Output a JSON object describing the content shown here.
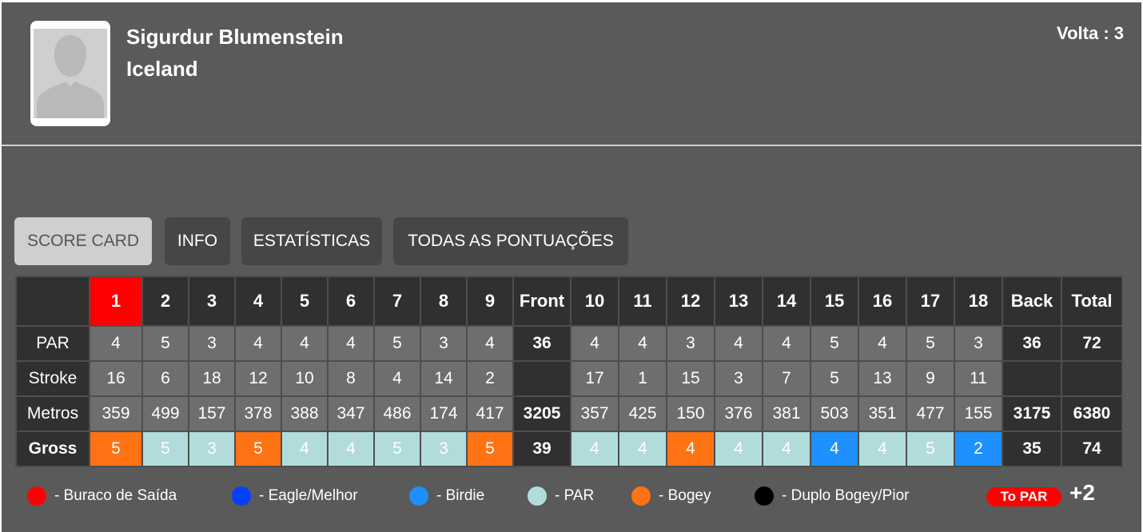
{
  "player": {
    "name": "Sigurdur Blumenstein",
    "country": "Iceland",
    "round": "Volta : 3"
  },
  "tabs": [
    {
      "label": "SCORE CARD",
      "active": true
    },
    {
      "label": "INFO",
      "active": false
    },
    {
      "label": "ESTATÍSTICAS",
      "active": false
    },
    {
      "label": "TODAS AS PONTUAÇÕES",
      "active": false
    }
  ],
  "scorecard": {
    "header": {
      "holes_front": [
        "1",
        "2",
        "3",
        "4",
        "5",
        "6",
        "7",
        "8",
        "9"
      ],
      "front": "Front",
      "holes_back": [
        "10",
        "11",
        "12",
        "13",
        "14",
        "15",
        "16",
        "17",
        "18"
      ],
      "back": "Back",
      "total": "Total"
    },
    "rows": [
      {
        "label": "PAR",
        "front": [
          "4",
          "5",
          "3",
          "4",
          "4",
          "4",
          "5",
          "3",
          "4"
        ],
        "front_total": "36",
        "back": [
          "4",
          "4",
          "3",
          "4",
          "4",
          "5",
          "4",
          "5",
          "3"
        ],
        "back_total": "36",
        "total": "72"
      },
      {
        "label": "Stroke",
        "front": [
          "16",
          "6",
          "18",
          "12",
          "10",
          "8",
          "4",
          "14",
          "2"
        ],
        "front_total": "",
        "back": [
          "17",
          "1",
          "15",
          "3",
          "7",
          "5",
          "13",
          "9",
          "11"
        ],
        "back_total": "",
        "total": ""
      },
      {
        "label": "Metros",
        "front": [
          "359",
          "499",
          "157",
          "378",
          "388",
          "347",
          "486",
          "174",
          "417"
        ],
        "front_total": "3205",
        "back": [
          "357",
          "425",
          "150",
          "376",
          "381",
          "503",
          "351",
          "477",
          "155"
        ],
        "back_total": "3175",
        "total": "6380"
      },
      {
        "label": "Gross",
        "front": [
          "5",
          "5",
          "3",
          "5",
          "4",
          "4",
          "5",
          "3",
          "5"
        ],
        "front_total": "39",
        "back": [
          "4",
          "4",
          "4",
          "4",
          "4",
          "4",
          "4",
          "5",
          "2"
        ],
        "back_total": "35",
        "total": "74",
        "front_result": [
          "bogey",
          "par",
          "par",
          "bogey",
          "par",
          "par",
          "par",
          "par",
          "bogey"
        ],
        "back_result": [
          "par",
          "par",
          "bogey",
          "par",
          "par",
          "birdie",
          "par",
          "par",
          "birdie"
        ]
      }
    ]
  },
  "legend": [
    {
      "key": "tee-hole",
      "label": "- Buraco de Saída",
      "color": "#ff0000"
    },
    {
      "key": "eagle",
      "label": "- Eagle/Melhor",
      "color": "#0040ff"
    },
    {
      "key": "birdie",
      "label": "- Birdie",
      "color": "#1e90ff"
    },
    {
      "key": "par",
      "label": "- PAR",
      "color": "#b2dcdc"
    },
    {
      "key": "bogey",
      "label": "- Bogey",
      "color": "#ff7315"
    },
    {
      "key": "double-bogey",
      "label": "- Duplo Bogey/Pior",
      "color": "#000000"
    }
  ],
  "to_par": {
    "label": "To PAR",
    "value": "+2"
  },
  "colors": {
    "panel": "#5a5a5a",
    "dark_cell": "#303030",
    "value_cell": "#6e6e6e",
    "highlight": "#ff0000"
  }
}
